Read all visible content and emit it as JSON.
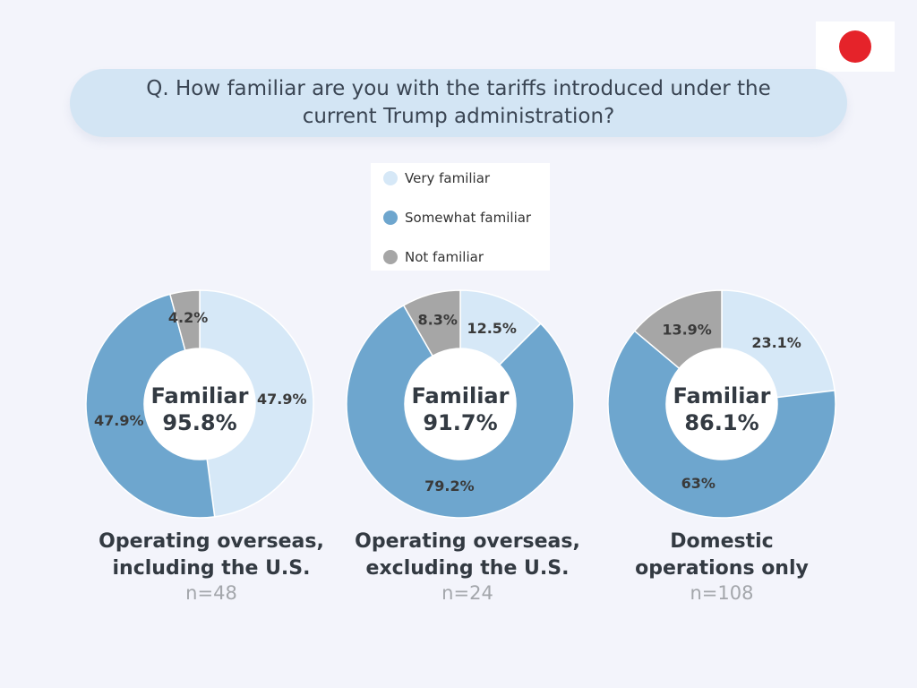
{
  "question": "Q. How familiar are you with the tariffs introduced under the current Trump administration?",
  "flag": {
    "name": "japan-flag",
    "dot_color": "#e5232a"
  },
  "colors": {
    "very_familiar": "#d6e8f7",
    "somewhat_familiar": "#6ea6ce",
    "not_familiar": "#a6a6a6"
  },
  "legend": [
    "Very familiar",
    "Somewhat familiar",
    "Not familiar"
  ],
  "chart_data": [
    {
      "type": "pie",
      "donut": true,
      "title_lines": [
        "Operating overseas,",
        "including the U.S."
      ],
      "n_label": "n=48",
      "center_lines": [
        "Familiar",
        "95.8%"
      ],
      "categories": [
        "Very familiar",
        "Somewhat familiar",
        "Not familiar"
      ],
      "values": [
        47.9,
        47.9,
        4.2
      ],
      "value_labels": [
        "47.9%",
        "47.9%",
        "4.2%"
      ]
    },
    {
      "type": "pie",
      "donut": true,
      "title_lines": [
        "Operating overseas,",
        "excluding the U.S."
      ],
      "n_label": "n=24",
      "center_lines": [
        "Familiar",
        "91.7%"
      ],
      "categories": [
        "Very familiar",
        "Somewhat familiar",
        "Not familiar"
      ],
      "values": [
        12.5,
        79.2,
        8.3
      ],
      "value_labels": [
        "12.5%",
        "79.2%",
        "8.3%"
      ]
    },
    {
      "type": "pie",
      "donut": true,
      "title_lines": [
        "Domestic",
        "operations only"
      ],
      "n_label": "n=108",
      "center_lines": [
        "Familiar",
        "86.1%"
      ],
      "categories": [
        "Very familiar",
        "Somewhat familiar",
        "Not familiar"
      ],
      "values": [
        23.1,
        63,
        13.9
      ],
      "value_labels": [
        "23.1%",
        "63%",
        "13.9%"
      ]
    }
  ]
}
